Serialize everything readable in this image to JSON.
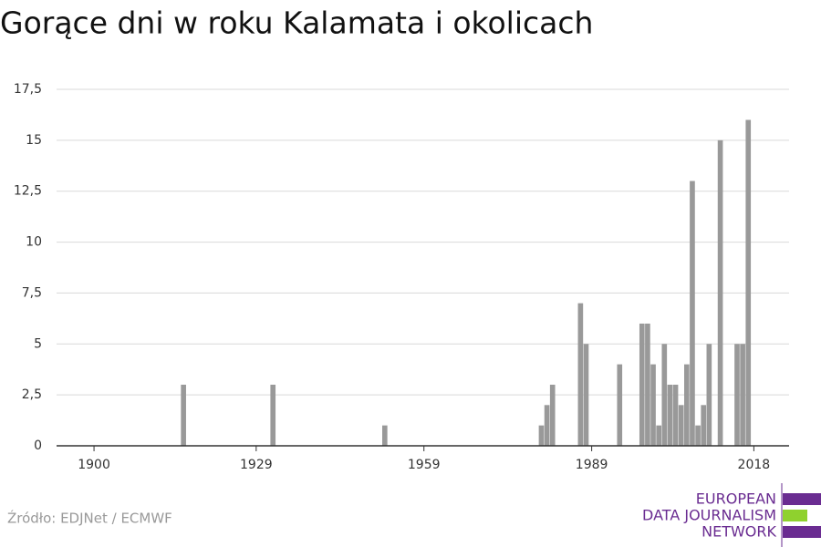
{
  "chart_data": {
    "type": "bar",
    "title": "Gorące dni w roku Kalamata i okolicach",
    "x": [
      1916,
      1932,
      1952,
      1980,
      1981,
      1982,
      1987,
      1988,
      1994,
      1998,
      1999,
      2000,
      2001,
      2002,
      2003,
      2004,
      2005,
      2006,
      2007,
      2008,
      2009,
      2010,
      2012,
      2015,
      2016,
      2017
    ],
    "values": [
      3,
      3,
      1,
      1,
      2,
      3,
      7,
      5,
      4,
      6,
      6,
      4,
      1,
      5,
      3,
      3,
      2,
      4,
      13,
      1,
      2,
      5,
      15,
      5,
      5,
      16
    ],
    "color": "#999999",
    "xlim": [
      1893.3,
      2024.3
    ],
    "xticks": [
      1900,
      1929,
      1959,
      1989,
      2018
    ],
    "ylim": [
      0,
      17.5
    ],
    "yticks": [
      0,
      {
        "value": 2.5,
        "label": "2,5"
      },
      5,
      {
        "value": 7.5,
        "label": "7,5"
      },
      10,
      {
        "value": 12.5,
        "label": "12,5"
      },
      15,
      {
        "value": 17.5,
        "label": "17,5"
      }
    ],
    "grid": true
  },
  "footer": {
    "source": "Źródło: EDJNet / ECMWF",
    "logo": [
      "EUROPEAN",
      "DATA JOURNALISM",
      "NETWORK"
    ]
  }
}
